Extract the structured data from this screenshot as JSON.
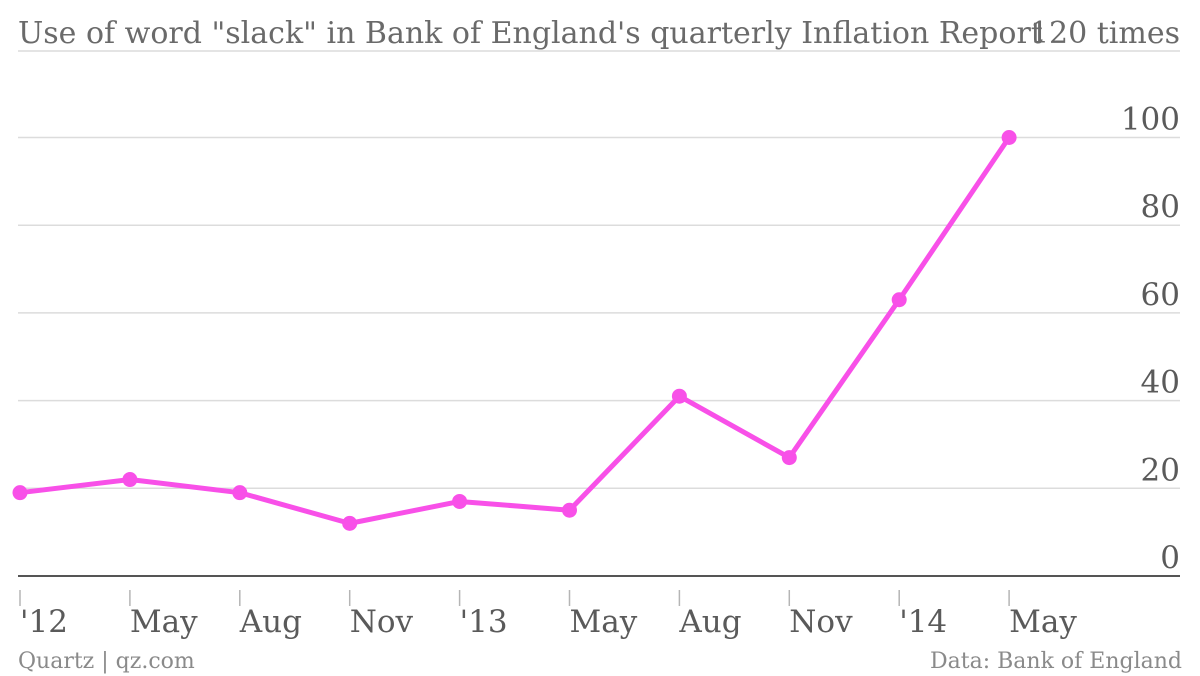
{
  "chart_data": {
    "type": "line",
    "title": "Use of word \"slack\" in Bank of England's quarterly Inflation Report",
    "unit_label": "120 times",
    "ylim": [
      0,
      120
    ],
    "y_ticks": [
      0,
      20,
      40,
      60,
      80,
      100
    ],
    "grid": true,
    "x_tick_labels": [
      "'12",
      "May",
      "Aug",
      "Nov",
      "'13",
      "May",
      "Aug",
      "Nov",
      "'14",
      "May"
    ],
    "series": [
      {
        "color": "#f850e8",
        "x": [
          "Feb 2012",
          "May 2012",
          "Aug 2012",
          "Nov 2012",
          "Feb 2013",
          "May 2013",
          "Aug 2013",
          "Nov 2013",
          "Feb 2014",
          "May 2014"
        ],
        "values": [
          19,
          22,
          19,
          12,
          17,
          15,
          41,
          27,
          63,
          100
        ]
      }
    ]
  },
  "footer": {
    "source_left": "Quartz | qz.com",
    "source_right": "Data: Bank of England"
  }
}
